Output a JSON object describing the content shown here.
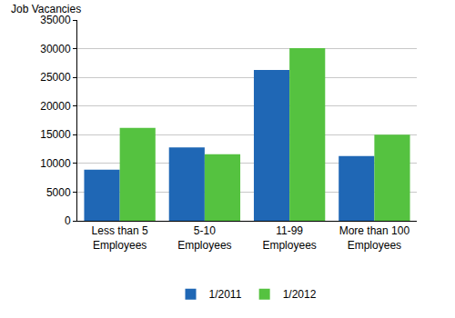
{
  "chart_data": {
    "type": "bar",
    "ylabel": "Job Vacancies",
    "categories": [
      "Less than 5 Employees",
      "5-10 Employees",
      "11-99 Employees",
      "More than 100 Employees"
    ],
    "series": [
      {
        "name": "1/2011",
        "color": "#1f67b5",
        "values": [
          8900,
          12800,
          26300,
          11300
        ]
      },
      {
        "name": "1/2012",
        "color": "#55c240",
        "values": [
          16200,
          11600,
          30100,
          15000
        ]
      }
    ],
    "ylim": [
      0,
      35000
    ],
    "yticks": [
      0,
      5000,
      10000,
      15000,
      20000,
      25000,
      30000,
      35000
    ],
    "grid": true,
    "legend": "bottom"
  }
}
